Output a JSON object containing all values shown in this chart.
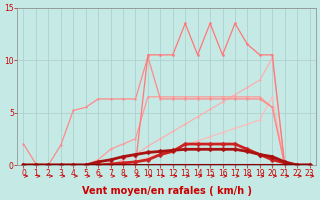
{
  "xlabel": "Vent moyen/en rafales ( km/h )",
  "xlim": [
    -0.5,
    23.5
  ],
  "ylim": [
    0,
    15
  ],
  "yticks": [
    0,
    5,
    10,
    15
  ],
  "xticks": [
    0,
    1,
    2,
    3,
    4,
    5,
    6,
    7,
    8,
    9,
    10,
    11,
    12,
    13,
    14,
    15,
    16,
    17,
    18,
    19,
    20,
    21,
    22,
    23
  ],
  "bg_color": "#c5eae6",
  "grid_color": "#aacccc",
  "lines": [
    {
      "x": [
        0,
        1,
        2,
        3,
        4,
        5,
        6,
        7,
        8,
        9,
        10,
        11,
        12,
        13,
        14,
        15,
        16,
        17,
        18,
        19,
        20,
        21,
        22,
        23
      ],
      "y": [
        0,
        0,
        0,
        0,
        0,
        0,
        0,
        0,
        0,
        0.3,
        0.7,
        1.1,
        1.5,
        1.9,
        2.3,
        2.7,
        3.1,
        3.5,
        3.9,
        4.3,
        6.5,
        0,
        0,
        0
      ],
      "color": "#ffb8b8",
      "lw": 0.8,
      "marker": ".",
      "ms": 2.5
    },
    {
      "x": [
        0,
        1,
        2,
        3,
        4,
        5,
        6,
        7,
        8,
        9,
        10,
        11,
        12,
        13,
        14,
        15,
        16,
        17,
        18,
        19,
        20,
        21,
        22,
        23
      ],
      "y": [
        0,
        0,
        0,
        0,
        0,
        0,
        0,
        0,
        0.5,
        1.0,
        1.8,
        2.5,
        3.2,
        3.9,
        4.6,
        5.3,
        6.0,
        6.7,
        7.4,
        8.1,
        10.2,
        0,
        0,
        0
      ],
      "color": "#ffaaaa",
      "lw": 0.8,
      "marker": ".",
      "ms": 2.5
    },
    {
      "x": [
        0,
        1,
        2,
        3,
        4,
        5,
        6,
        7,
        8,
        9,
        10,
        11,
        12,
        13,
        14,
        15,
        16,
        17,
        18,
        19,
        20,
        21,
        22,
        23
      ],
      "y": [
        0,
        0,
        0,
        0,
        0,
        0,
        0.5,
        1.5,
        2.0,
        2.5,
        6.5,
        6.5,
        6.5,
        6.5,
        6.5,
        6.5,
        6.5,
        6.5,
        6.5,
        6.5,
        5.5,
        0,
        0,
        0
      ],
      "color": "#ff9999",
      "lw": 0.9,
      "marker": ".",
      "ms": 2.5
    },
    {
      "x": [
        0,
        1,
        2,
        3,
        4,
        5,
        6,
        7,
        8,
        9,
        10,
        11,
        12,
        13,
        14,
        15,
        16,
        17,
        18,
        19,
        20,
        21,
        22,
        23
      ],
      "y": [
        2,
        0.1,
        0,
        1.9,
        5.2,
        5.5,
        6.3,
        6.3,
        6.3,
        6.3,
        10.3,
        6.3,
        6.3,
        6.3,
        6.3,
        6.3,
        6.3,
        6.3,
        6.3,
        6.3,
        5.5,
        0,
        0,
        0
      ],
      "color": "#ff8888",
      "lw": 0.9,
      "marker": ".",
      "ms": 2.5
    },
    {
      "x": [
        0,
        1,
        2,
        3,
        4,
        5,
        6,
        7,
        8,
        9,
        10,
        11,
        12,
        13,
        14,
        15,
        16,
        17,
        18,
        19,
        20,
        21,
        22,
        23
      ],
      "y": [
        0,
        0,
        0,
        0,
        0,
        0,
        0,
        0,
        0,
        0,
        10.5,
        10.5,
        10.5,
        13.5,
        10.5,
        13.5,
        10.5,
        13.5,
        11.5,
        10.5,
        10.5,
        0,
        0,
        0
      ],
      "color": "#ff7777",
      "lw": 0.9,
      "marker": ".",
      "ms": 3
    },
    {
      "x": [
        0,
        1,
        2,
        3,
        4,
        5,
        6,
        7,
        8,
        9,
        10,
        11,
        12,
        13,
        14,
        15,
        16,
        17,
        18,
        19,
        20,
        21,
        22,
        23
      ],
      "y": [
        0,
        0,
        0,
        0,
        0,
        0,
        0,
        0.1,
        0.2,
        0.3,
        0.5,
        1.0,
        1.3,
        2.0,
        2.0,
        2.0,
        2.0,
        2.0,
        1.5,
        1.0,
        0.5,
        0.2,
        0,
        0
      ],
      "color": "#cc2222",
      "lw": 2.0,
      "marker": "D",
      "ms": 2.5
    },
    {
      "x": [
        0,
        1,
        2,
        3,
        4,
        5,
        6,
        7,
        8,
        9,
        10,
        11,
        12,
        13,
        14,
        15,
        16,
        17,
        18,
        19,
        20,
        21,
        22,
        23
      ],
      "y": [
        0,
        0,
        0,
        0,
        0,
        0,
        0.3,
        0.5,
        0.8,
        1.0,
        1.2,
        1.3,
        1.4,
        1.5,
        1.5,
        1.5,
        1.5,
        1.5,
        1.3,
        1.0,
        0.8,
        0.3,
        0,
        0
      ],
      "color": "#aa1111",
      "lw": 2.0,
      "marker": "D",
      "ms": 2.5
    },
    {
      "x": [
        0,
        1,
        2,
        3,
        4,
        5,
        6,
        7,
        8,
        9,
        10,
        11,
        12,
        13,
        14,
        15,
        16,
        17,
        18,
        19,
        20,
        21,
        22,
        23
      ],
      "y": [
        0,
        0,
        0,
        0,
        0,
        0,
        0,
        0,
        0,
        0,
        0,
        0,
        0,
        0,
        0,
        0,
        0,
        0,
        0,
        0,
        0,
        0,
        0,
        0
      ],
      "color": "#880000",
      "lw": 1.5,
      "marker": ".",
      "ms": 2
    }
  ],
  "arrow_color": "#cc0000",
  "xlabel_fontsize": 7,
  "tick_fontsize": 5.5,
  "tick_color": "#cc0000",
  "xlabel_color": "#cc0000"
}
